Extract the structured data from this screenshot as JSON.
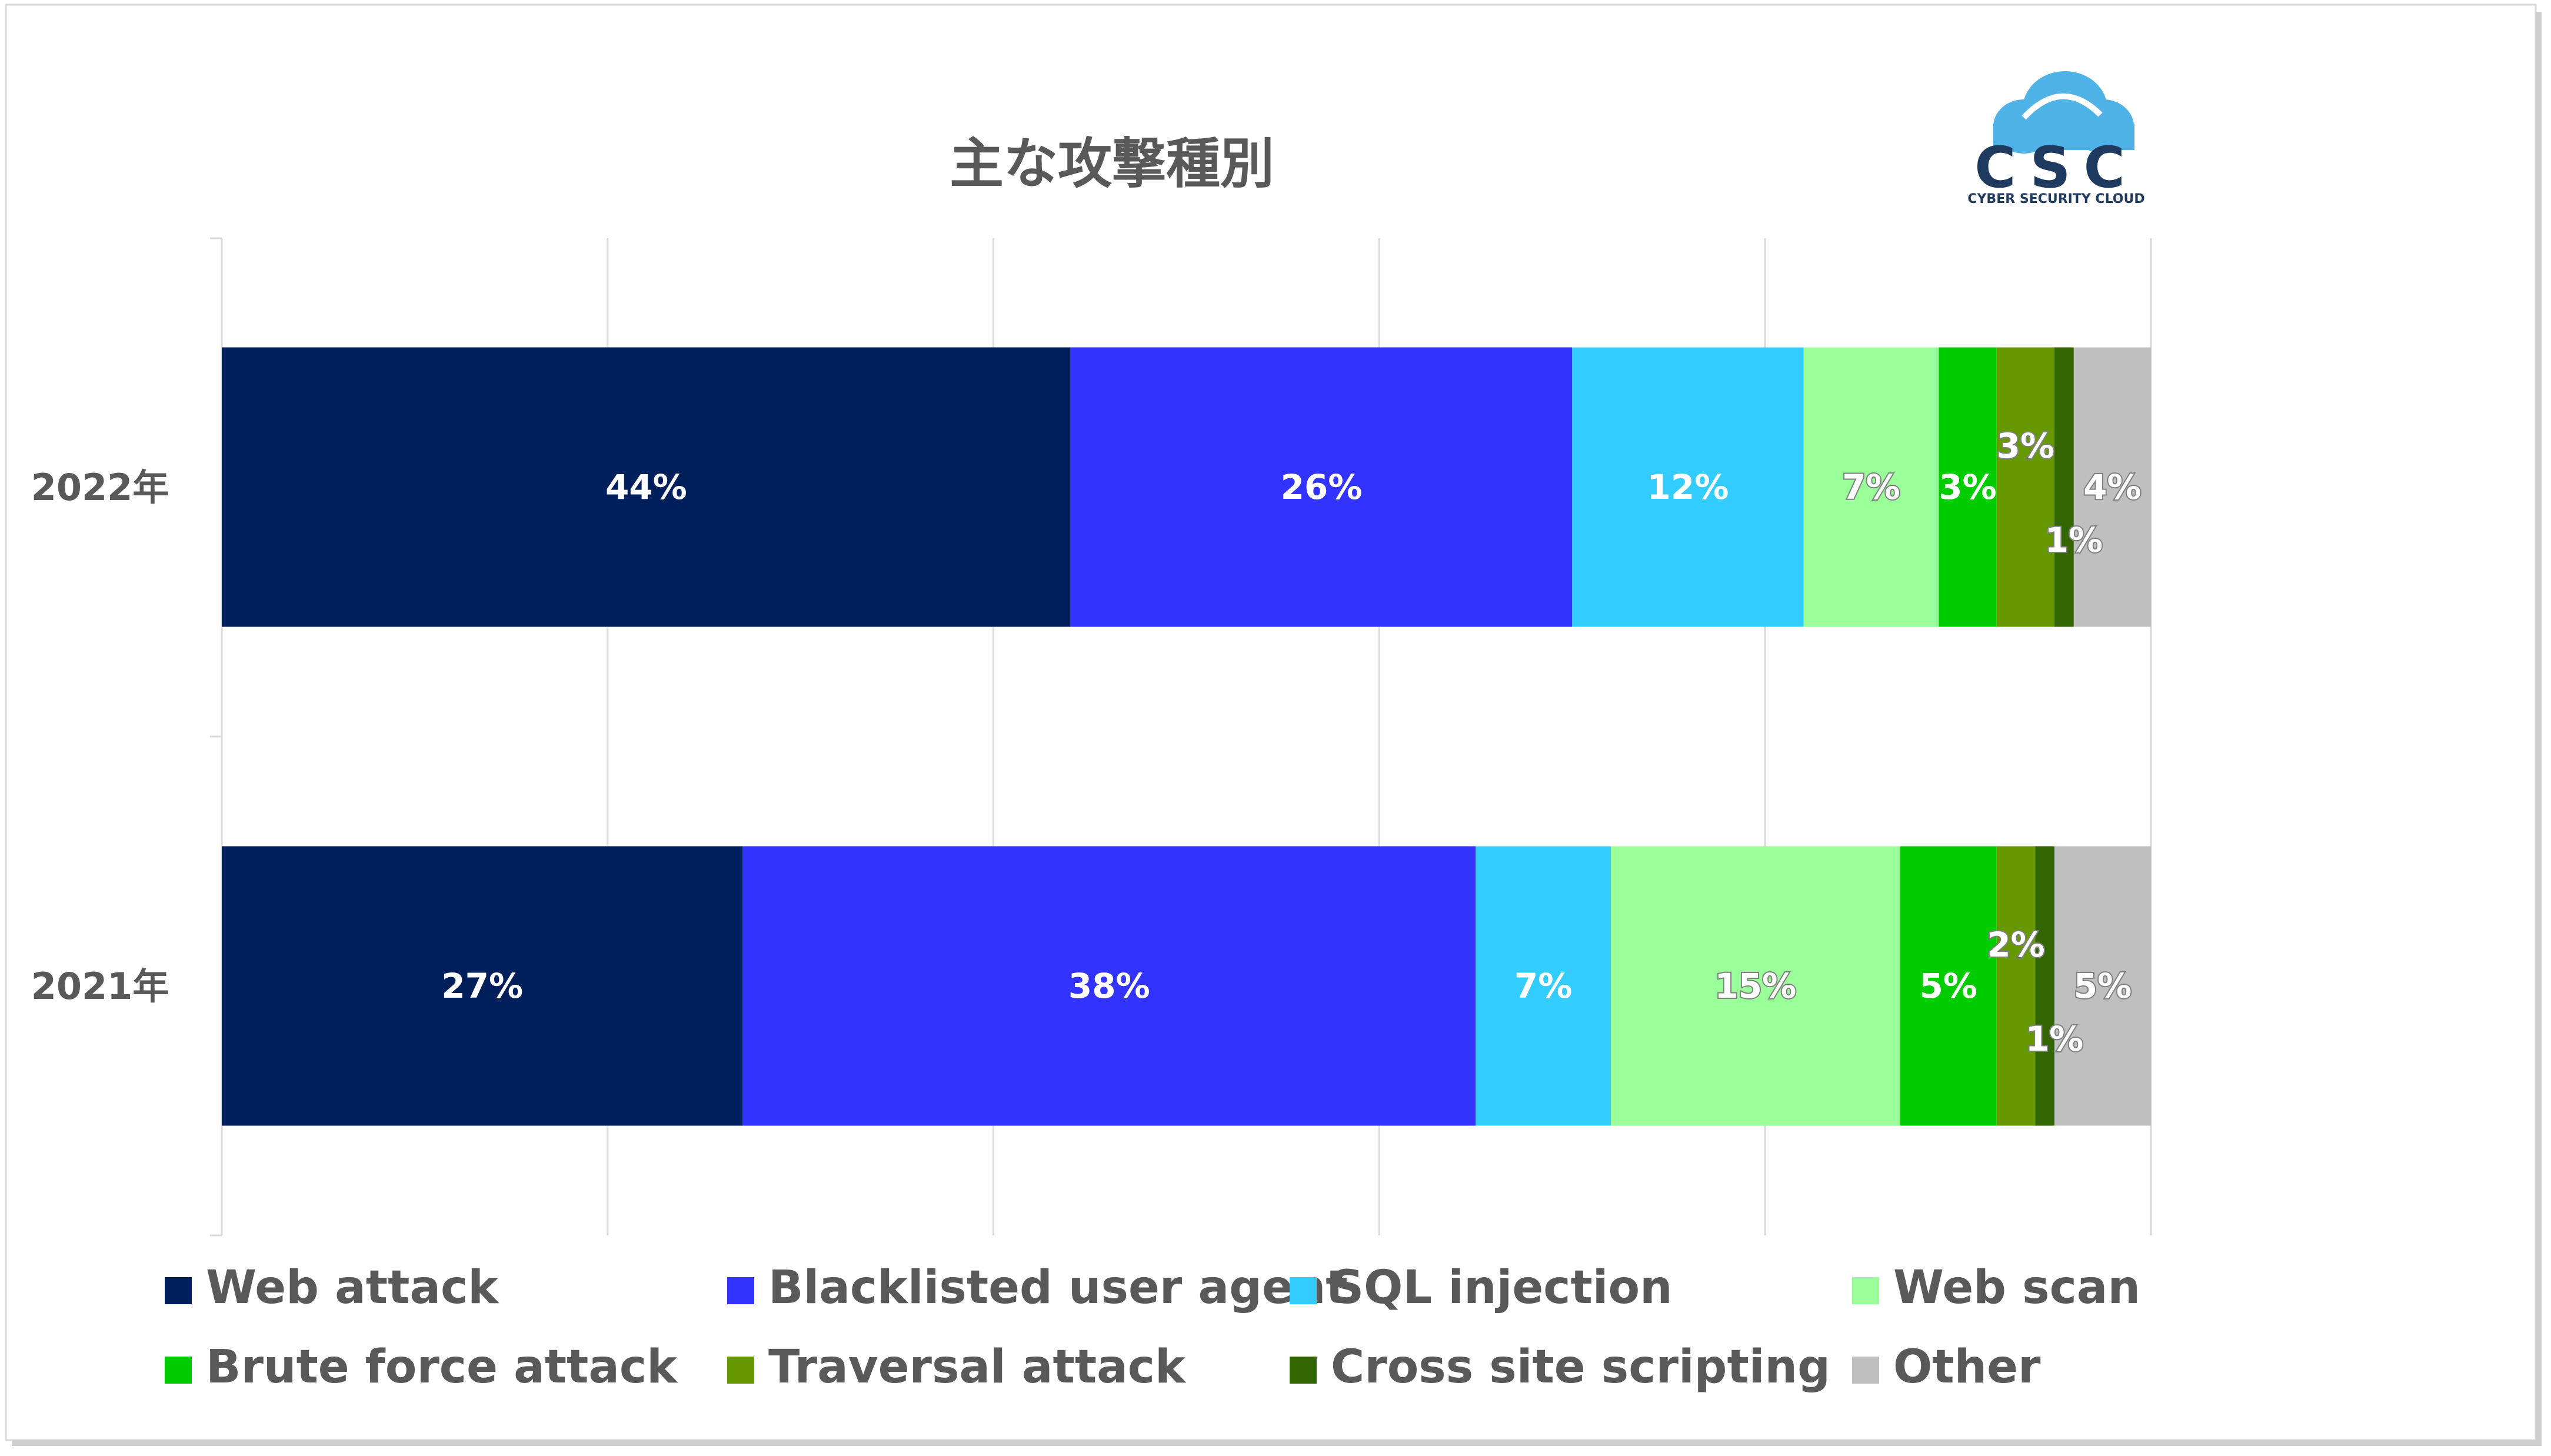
{
  "chart_data": {
    "type": "bar",
    "orientation": "horizontal",
    "stacked": true,
    "title": "主な攻撃種別",
    "categories": [
      "2022年",
      "2021年"
    ],
    "xlim": [
      0,
      100
    ],
    "grid": true,
    "legend_position": "bottom",
    "series": [
      {
        "name": "Web attack",
        "color": "#001F5B",
        "values": [
          44,
          27
        ],
        "labels": [
          "44%",
          "27%"
        ]
      },
      {
        "name": "Blacklisted user agent",
        "color": "#3333FF",
        "values": [
          26,
          38
        ],
        "labels": [
          "26%",
          "38%"
        ]
      },
      {
        "name": "SQL injection",
        "color": "#33CCFF",
        "values": [
          12,
          7
        ],
        "labels": [
          "12%",
          "7%"
        ]
      },
      {
        "name": "Web scan",
        "color": "#99FF99",
        "values": [
          7,
          15
        ],
        "labels": [
          "7%",
          "15%"
        ]
      },
      {
        "name": "Brute force attack",
        "color": "#00CC00",
        "values": [
          3,
          5
        ],
        "labels": [
          "3%",
          "5%"
        ]
      },
      {
        "name": "Traversal attack",
        "color": "#669900",
        "values": [
          3,
          2
        ],
        "labels": [
          "3%",
          "2%"
        ]
      },
      {
        "name": "Cross site scripting",
        "color": "#336600",
        "values": [
          1,
          1
        ],
        "labels": [
          "1%",
          "1%"
        ]
      },
      {
        "name": "Other",
        "color": "#BFBFBF",
        "values": [
          4,
          5
        ],
        "labels": [
          "4%",
          "5%"
        ]
      }
    ]
  },
  "logo": {
    "text": "CSC",
    "subtext": "CYBER SECURITY CLOUD",
    "cloud_color": "#4FB3E8",
    "text_color": "#1F3A5F"
  }
}
